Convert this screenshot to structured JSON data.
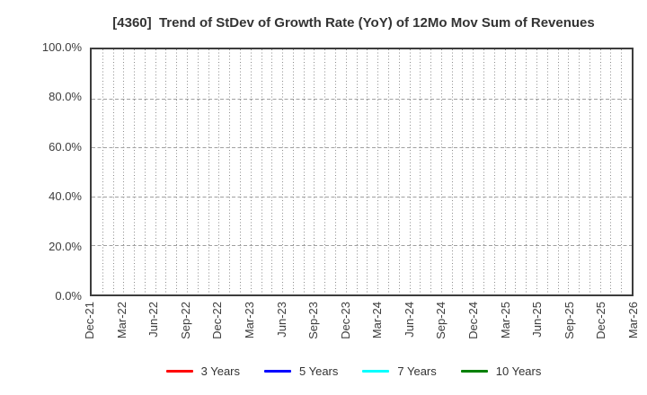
{
  "chart_data": {
    "type": "line",
    "title": "[4360]  Trend of StDev of Growth Rate (YoY) of 12Mo Mov Sum of Revenues",
    "categories": [
      "Dec-21",
      "Mar-22",
      "Jun-22",
      "Sep-22",
      "Dec-22",
      "Mar-23",
      "Jun-23",
      "Sep-23",
      "Dec-23",
      "Mar-24",
      "Jun-24",
      "Sep-24",
      "Dec-24",
      "Mar-25",
      "Jun-25",
      "Sep-25",
      "Dec-25",
      "Mar-26"
    ],
    "y_tick_labels": [
      "100.0%",
      "80.0%",
      "60.0%",
      "40.0%",
      "20.0%",
      "0.0%"
    ],
    "ylim": [
      0,
      100
    ],
    "xlabel": "",
    "ylabel": "",
    "grid": true,
    "minor_x_gridlines_per_quarter": 3,
    "x_tick_rotation": 90,
    "legend_position": "bottom",
    "series": [
      {
        "name": "3 Years",
        "color": "#ff0000",
        "values": []
      },
      {
        "name": "5 Years",
        "color": "#0000ff",
        "values": []
      },
      {
        "name": "7 Years",
        "color": "#00ffff",
        "values": []
      },
      {
        "name": "10 Years",
        "color": "#008000",
        "values": []
      }
    ]
  },
  "colors": {
    "grid_vertical": "#8c8c8c",
    "grid_horizontal": "#a0a0a0",
    "plot_border": "#3d3d3d",
    "text": "#333333"
  }
}
